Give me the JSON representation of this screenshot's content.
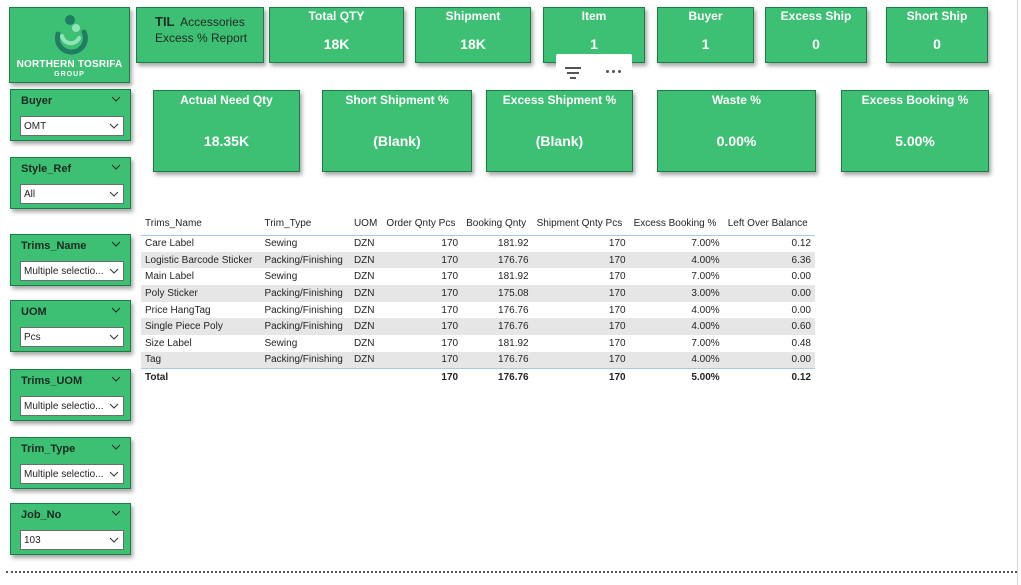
{
  "logo": {
    "name": "NORTHERN TOSRIFA",
    "sub": "GROUP",
    "colors": {
      "tile": "#3dbf74",
      "mark_dark": "#1e7d63",
      "mark_light": "#8fe3b8"
    }
  },
  "title": {
    "prefix": "TIL",
    "line1": "Accessories",
    "line2": "Excess % Report"
  },
  "kpi_top": [
    {
      "label": "Total QTY",
      "value": "18K"
    },
    {
      "label": "Shipment",
      "value": "18K"
    },
    {
      "label": "Item",
      "value": "1"
    },
    {
      "label": "Buyer",
      "value": "1"
    },
    {
      "label": "Excess Ship",
      "value": "0"
    },
    {
      "label": "Short Ship",
      "value": "0"
    }
  ],
  "kpi_bottom": [
    {
      "label": "Actual Need Qty",
      "value": "18.35K"
    },
    {
      "label": "Short Shipment %",
      "value": "(Blank)"
    },
    {
      "label": "Excess Shipment %",
      "value": "(Blank)"
    },
    {
      "label": "Waste %",
      "value": "0.00%"
    },
    {
      "label": "Excess Booking %",
      "value": "5.00%"
    }
  ],
  "visual_header": {
    "icons": [
      "filter-icon",
      "more-options-icon"
    ]
  },
  "slicers": [
    {
      "title": "Buyer",
      "value": "OMT"
    },
    {
      "title": "Style_Ref",
      "value": "All"
    },
    {
      "title": "Trims_Name",
      "value": "Multiple selectio..."
    },
    {
      "title": "UOM",
      "value": "Pcs"
    },
    {
      "title": "Trims_UOM",
      "value": "Multiple selectio..."
    },
    {
      "title": "Trim_Type",
      "value": "Multiple selectio..."
    },
    {
      "title": "Job_No",
      "value": "103"
    }
  ],
  "table": {
    "headers": [
      "Trims_Name",
      "Trim_Type",
      "UOM",
      "Order Qnty Pcs",
      "Booking Qnty",
      "Shipment Qnty Pcs",
      "Excess Booking %",
      "Left Over Balance"
    ],
    "rows": [
      [
        "Care Label",
        "Sewing",
        "DZN",
        "170",
        "181.92",
        "170",
        "7.00%",
        "0.12"
      ],
      [
        "Logistic Barcode Sticker",
        "Packing/Finishing",
        "DZN",
        "170",
        "176.76",
        "170",
        "4.00%",
        "6.36"
      ],
      [
        "Main Label",
        "Sewing",
        "DZN",
        "170",
        "181.92",
        "170",
        "7.00%",
        "0.00"
      ],
      [
        "Poly Sticker",
        "Packing/Finishing",
        "DZN",
        "170",
        "175.08",
        "170",
        "3.00%",
        "0.00"
      ],
      [
        "Price HangTag",
        "Packing/Finishing",
        "DZN",
        "170",
        "176.76",
        "170",
        "4.00%",
        "0.00"
      ],
      [
        "Single Piece Poly",
        "Packing/Finishing",
        "DZN",
        "170",
        "176.76",
        "170",
        "4.00%",
        "0.60"
      ],
      [
        "Size Label",
        "Sewing",
        "DZN",
        "170",
        "181.92",
        "170",
        "7.00%",
        "0.48"
      ],
      [
        "Tag",
        "Packing/Finishing",
        "DZN",
        "170",
        "176.76",
        "170",
        "4.00%",
        "0.00"
      ]
    ],
    "total": [
      "Total",
      "",
      "",
      "170",
      "176.76",
      "170",
      "5.00%",
      "0.12"
    ]
  }
}
